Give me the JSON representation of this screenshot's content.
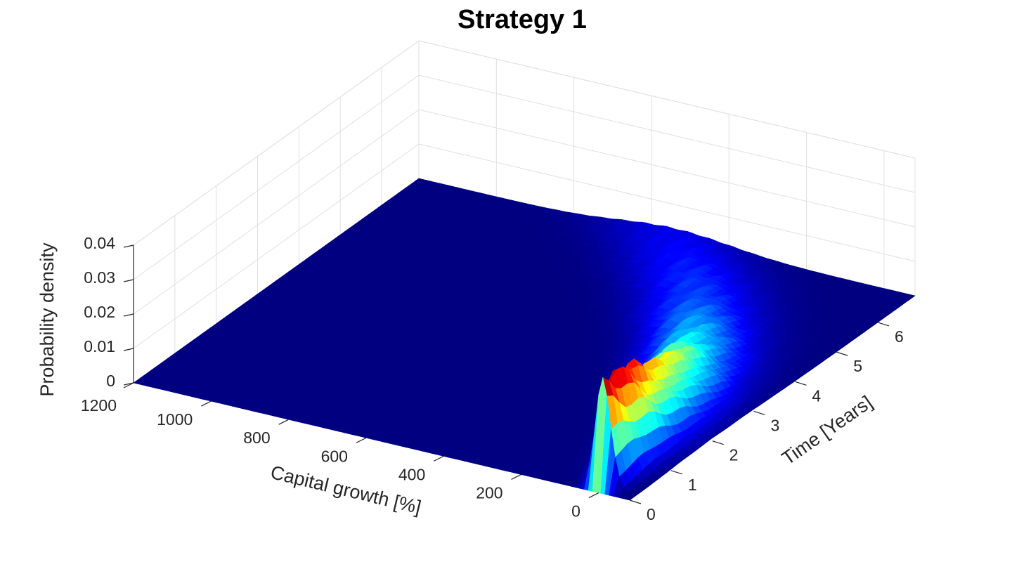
{
  "chart_data": {
    "type": "surface",
    "title": "Strategy 1",
    "xlabel": "Capital growth [%]",
    "ylabel": "Time [Years]",
    "zlabel": "Probability density",
    "x_ticks": [
      "0",
      "200",
      "400",
      "600",
      "800",
      "1000",
      "1200"
    ],
    "y_ticks": [
      "0",
      "1",
      "2",
      "3",
      "4",
      "5",
      "6"
    ],
    "z_ticks": [
      "0",
      "0.01",
      "0.02",
      "0.03",
      "0.04"
    ],
    "xlim": [
      -80,
      1200
    ],
    "ylim": [
      0,
      6.9
    ],
    "zlim": [
      0,
      0.04
    ],
    "colormap": "jet",
    "grid": "on",
    "ridge_center_growth": [
      [
        0,
        0
      ],
      [
        1,
        25
      ],
      [
        2,
        55
      ],
      [
        3,
        100
      ],
      [
        4,
        170
      ],
      [
        5,
        270
      ],
      [
        6,
        400
      ],
      [
        6.9,
        540
      ]
    ],
    "ridge_peak_density": [
      [
        0.3,
        0.03
      ],
      [
        1.0,
        0.027
      ],
      [
        1.5,
        0.022
      ],
      [
        2.0,
        0.019
      ],
      [
        2.5,
        0.017
      ],
      [
        3.5,
        0.011
      ],
      [
        5.0,
        0.006
      ],
      [
        6.9,
        0.003
      ]
    ]
  }
}
